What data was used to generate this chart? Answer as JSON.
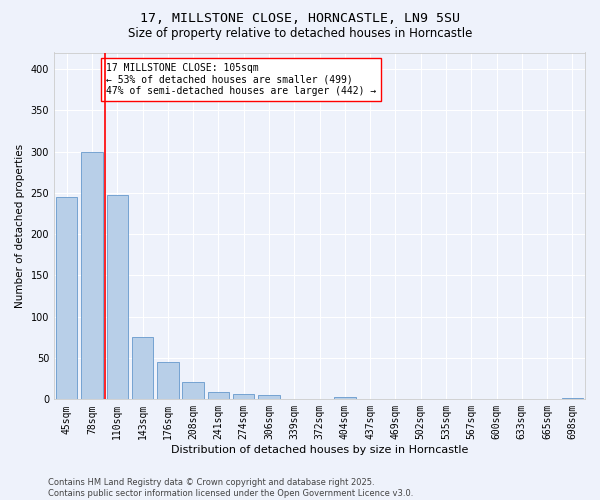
{
  "title1": "17, MILLSTONE CLOSE, HORNCASTLE, LN9 5SU",
  "title2": "Size of property relative to detached houses in Horncastle",
  "xlabel": "Distribution of detached houses by size in Horncastle",
  "ylabel": "Number of detached properties",
  "categories": [
    "45sqm",
    "78sqm",
    "110sqm",
    "143sqm",
    "176sqm",
    "208sqm",
    "241sqm",
    "274sqm",
    "306sqm",
    "339sqm",
    "372sqm",
    "404sqm",
    "437sqm",
    "469sqm",
    "502sqm",
    "535sqm",
    "567sqm",
    "600sqm",
    "633sqm",
    "665sqm",
    "698sqm"
  ],
  "values": [
    245,
    300,
    248,
    76,
    45,
    21,
    9,
    7,
    5,
    0,
    0,
    3,
    0,
    0,
    0,
    0,
    0,
    0,
    0,
    0,
    2
  ],
  "bar_color": "#b8cfe8",
  "bar_edge_color": "#6699cc",
  "vline_color": "red",
  "vline_pos": 1.5,
  "annotation_text": "17 MILLSTONE CLOSE: 105sqm\n← 53% of detached houses are smaller (499)\n47% of semi-detached houses are larger (442) →",
  "annotation_box_color": "white",
  "annotation_box_edge_color": "red",
  "footnote": "Contains HM Land Registry data © Crown copyright and database right 2025.\nContains public sector information licensed under the Open Government Licence v3.0.",
  "ylim": [
    0,
    420
  ],
  "yticks": [
    0,
    50,
    100,
    150,
    200,
    250,
    300,
    350,
    400
  ],
  "bg_color": "#eef2fb",
  "grid_color": "white",
  "title1_fontsize": 9.5,
  "title2_fontsize": 8.5,
  "xlabel_fontsize": 8,
  "ylabel_fontsize": 7.5,
  "tick_fontsize": 7,
  "annot_fontsize": 7,
  "footnote_fontsize": 6
}
